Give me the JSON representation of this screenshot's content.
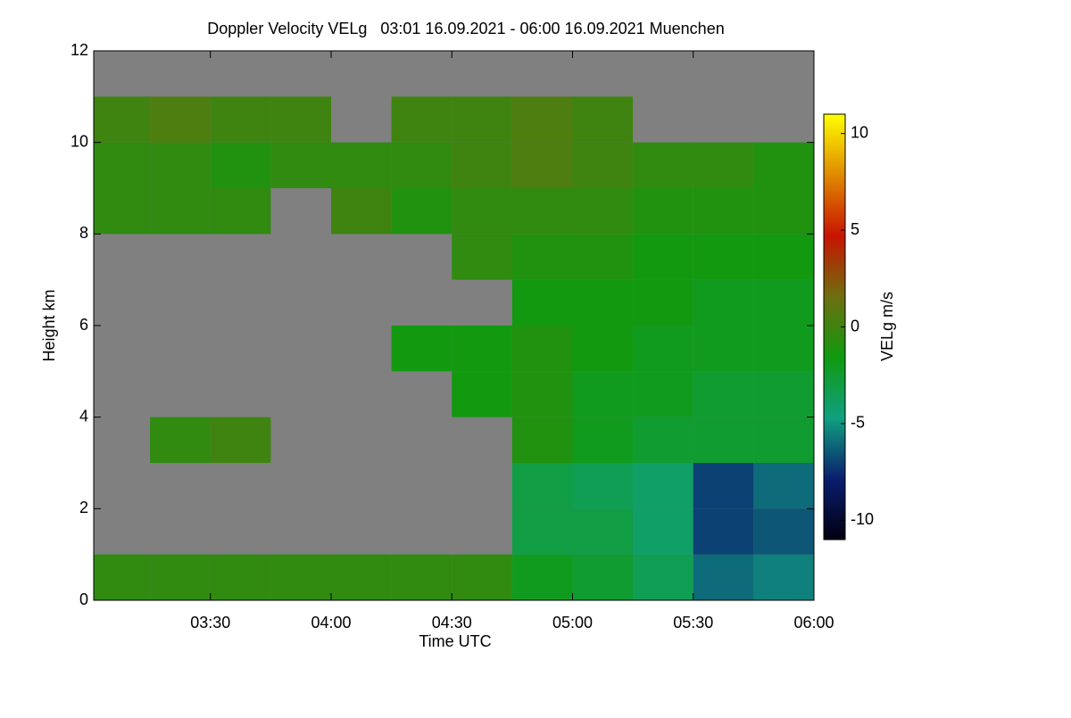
{
  "chart_data": {
    "type": "heatmap",
    "title": "Doppler Velocity VELg   03:01 16.09.2021 - 06:00 16.09.2021 Muenchen",
    "x_label": "Time UTC",
    "y_label": "Height km",
    "colorbar_label": "VELg m/s",
    "xbins": [
      181,
      195,
      210,
      225,
      240,
      255,
      270,
      285,
      300,
      315,
      330,
      345,
      360
    ],
    "ybins": [
      0,
      1,
      2,
      3,
      4,
      5,
      6,
      7,
      8,
      9,
      10,
      11,
      12
    ],
    "z": [
      [
        -0.5,
        -0.5,
        -0.5,
        -0.5,
        -0.5,
        -0.5,
        -0.5,
        -2,
        -2.5,
        -3.5,
        -6,
        -5.5
      ],
      [
        null,
        null,
        null,
        null,
        null,
        null,
        null,
        -3,
        -3,
        -4,
        -7,
        -6.5
      ],
      [
        null,
        null,
        null,
        null,
        null,
        null,
        null,
        -3,
        -3.5,
        -4,
        -7,
        -6
      ],
      [
        null,
        -0.5,
        0,
        null,
        null,
        null,
        null,
        -1,
        -2,
        -2.5,
        -2.5,
        -2.5
      ],
      [
        null,
        null,
        null,
        null,
        null,
        null,
        -1.5,
        -1,
        -2,
        -2,
        -2.5,
        -2.5
      ],
      [
        null,
        null,
        null,
        null,
        null,
        -1.5,
        -1.5,
        -1,
        -1.5,
        -2,
        -2,
        -2
      ],
      [
        null,
        null,
        null,
        null,
        null,
        null,
        null,
        -1.5,
        -1.5,
        -1.5,
        -2,
        -2
      ],
      [
        null,
        null,
        null,
        null,
        null,
        null,
        -0.5,
        -1,
        -1,
        -1.5,
        -1.5,
        -1.5
      ],
      [
        -0.5,
        -0.5,
        -0.5,
        null,
        0,
        -1,
        -0.5,
        -0.5,
        -0.5,
        -1,
        -1,
        -1
      ],
      [
        -0.5,
        -0.5,
        -1,
        -0.5,
        -0.5,
        -0.5,
        0,
        0.5,
        0,
        -0.5,
        -0.5,
        -1
      ],
      [
        0,
        0.5,
        0,
        0,
        null,
        0,
        0,
        0.5,
        0,
        null,
        null,
        null
      ],
      [
        null,
        null,
        null,
        null,
        null,
        null,
        null,
        null,
        null,
        null,
        null,
        null
      ]
    ],
    "xlim": [
      181,
      360
    ],
    "xticks": [
      {
        "value": 210,
        "label": "03:30"
      },
      {
        "value": 240,
        "label": "04:00"
      },
      {
        "value": 270,
        "label": "04:30"
      },
      {
        "value": 300,
        "label": "05:00"
      },
      {
        "value": 330,
        "label": "05:30"
      },
      {
        "value": 360,
        "label": "06:00"
      }
    ],
    "ylim": [
      0,
      12
    ],
    "yticks": [
      0,
      2,
      4,
      6,
      8,
      10,
      12
    ],
    "zlim": [
      -11,
      11
    ],
    "zticks": [
      -10,
      -5,
      0,
      5,
      10
    ],
    "colormap": [
      "#000010",
      "#0a1e6e",
      "#10a080",
      "#109a10",
      "#6e6e10",
      "#c81400",
      "#e08a00",
      "#ffff00"
    ],
    "missing_color": "#808080"
  }
}
